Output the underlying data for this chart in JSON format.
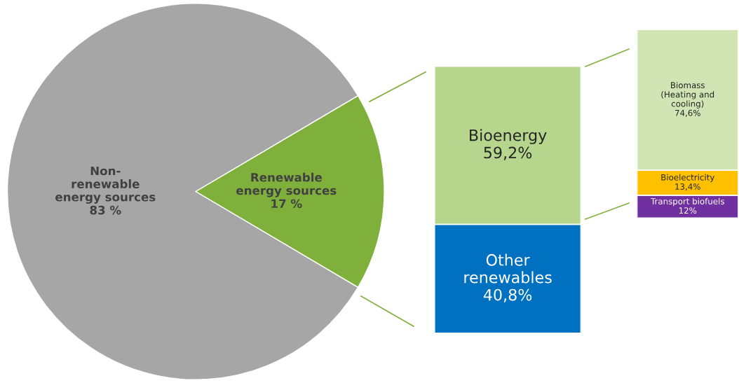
{
  "chart_data": [
    {
      "type": "pie",
      "categories": [
        "Non-\nrenewable\nenergy sources",
        "Renewable\nenergy sources"
      ],
      "values": [
        83,
        17
      ],
      "value_labels": [
        "83 %",
        "17 %"
      ],
      "colors": [
        "#a6a6a6",
        "#80b03c"
      ]
    },
    {
      "type": "bar",
      "stacked": true,
      "categories": [
        null
      ],
      "series": [
        {
          "name": "Other\nrenewables",
          "color": "#0070c0",
          "values": [
            40.8
          ],
          "value_labels": [
            "40,8%"
          ]
        },
        {
          "name": "Bioenergy",
          "color": "#b5d68c",
          "values": [
            59.2
          ],
          "value_labels": [
            "59,2%"
          ]
        }
      ]
    },
    {
      "type": "bar",
      "stacked": true,
      "categories": [
        null
      ],
      "series": [
        {
          "name": "Transport biofuels",
          "color": "#7030a0",
          "values": [
            12
          ],
          "value_labels": [
            "12%"
          ]
        },
        {
          "name": "Bioelectricity",
          "color": "#ffc000",
          "values": [
            13.4
          ],
          "value_labels": [
            "13,4%"
          ]
        },
        {
          "name": "Biomass\n(Heating and\ncooling)",
          "color": "#d1e5b4",
          "values": [
            74.6
          ],
          "value_labels": [
            "74,6%"
          ]
        }
      ]
    }
  ]
}
